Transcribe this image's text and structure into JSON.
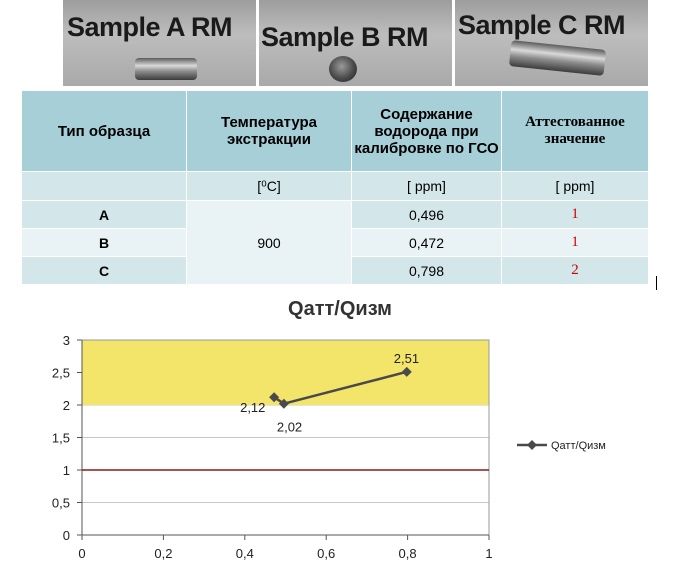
{
  "photos": [
    {
      "label": "Sample A RM"
    },
    {
      "label": "Sample B RM"
    },
    {
      "label": "Sample C RM"
    }
  ],
  "table": {
    "headers": [
      "Тип образца",
      "Температура экстракции",
      "Содержание водорода при калибровке по ГСО",
      "Аттестованное значение"
    ],
    "units": [
      "",
      "[⁰С]",
      "[ ppm]",
      "[ ppm]"
    ],
    "temperature": "900",
    "rows": [
      {
        "type": "A",
        "measured": "0,496",
        "certified": "1"
      },
      {
        "type": "B",
        "measured": "0,472",
        "certified": "1"
      },
      {
        "type": "C",
        "measured": "0,798",
        "certified": "2"
      }
    ],
    "colors": {
      "header_bg": "#a7cfd7",
      "row_bg": "#d3e6ea",
      "row_alt_bg": "#e9f2f4",
      "certified_text": "#d00000"
    }
  },
  "chart_data": {
    "type": "line",
    "title": "Qатт/Qизм",
    "xlim": [
      0,
      1
    ],
    "ylim": [
      0,
      3
    ],
    "x_ticks": [
      "0",
      "0,2",
      "0,4",
      "0,6",
      "0,8",
      "1"
    ],
    "y_ticks": [
      "0",
      "0,5",
      "1",
      "1,5",
      "2",
      "2,5",
      "3"
    ],
    "grid": true,
    "legend_position": "right",
    "series": [
      {
        "name": "Qатт/Qизм",
        "color": "#4a4a4a",
        "points": [
          {
            "x": 0.472,
            "y": 2.12,
            "label": "2,12"
          },
          {
            "x": 0.496,
            "y": 2.02,
            "label": "2,02"
          },
          {
            "x": 0.798,
            "y": 2.51,
            "label": "2,51"
          }
        ]
      }
    ],
    "highlight_band": {
      "y_from": 2,
      "y_to": 3,
      "color": "#f3e46a"
    },
    "reference_line": {
      "y": 1,
      "color": "#8b1a1a"
    }
  }
}
